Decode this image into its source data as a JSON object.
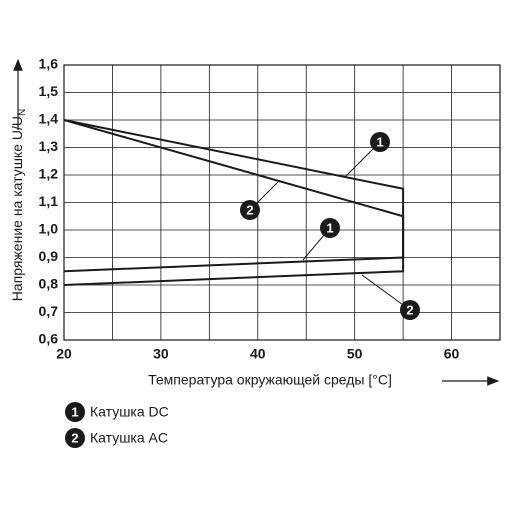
{
  "chart_data": {
    "type": "line",
    "x_label": "Температура окружающей среды [°C]",
    "y_label": "Напряжение на катушке U/U",
    "y_label_sub": "N",
    "xlim": [
      20,
      65
    ],
    "xticks": [
      20,
      30,
      40,
      50,
      60
    ],
    "minor_xticks": [
      25,
      35,
      45,
      55,
      65
    ],
    "ylim": [
      0.6,
      1.6
    ],
    "yticks": [
      {
        "value": 0.6,
        "label": "0,6"
      },
      {
        "value": 0.7,
        "label": "0,7"
      },
      {
        "value": 0.8,
        "label": "0,8"
      },
      {
        "value": 0.9,
        "label": "0,9"
      },
      {
        "value": 1.0,
        "label": "1,0"
      },
      {
        "value": 1.1,
        "label": "1,1"
      },
      {
        "value": 1.2,
        "label": "1,2"
      },
      {
        "value": 1.3,
        "label": "1,3"
      },
      {
        "value": 1.4,
        "label": "1,4"
      },
      {
        "value": 1.5,
        "label": "1,5"
      },
      {
        "value": 1.6,
        "label": "1,6"
      }
    ],
    "grid": true,
    "series": [
      {
        "name": "Катушка DC",
        "marker": "1",
        "color": "#1a1a1a",
        "x": [
          20,
          55,
          55,
          20
        ],
        "values": [
          1.4,
          1.15,
          0.9,
          0.85
        ]
      },
      {
        "name": "Катушка AC",
        "marker": "2",
        "color": "#1a1a1a",
        "x": [
          20,
          55,
          55,
          20
        ],
        "values": [
          1.4,
          1.05,
          0.85,
          0.8
        ]
      }
    ]
  }
}
